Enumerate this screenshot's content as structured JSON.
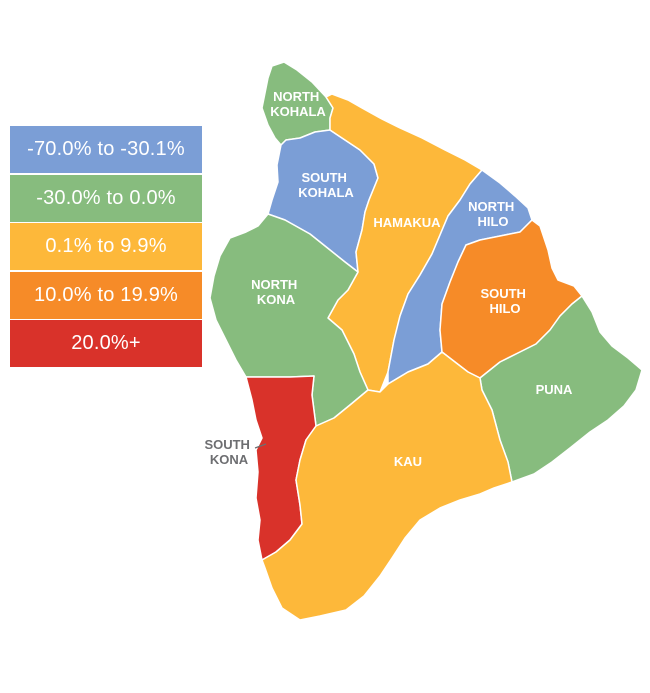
{
  "colors": {
    "range_1": "#7b9ed6",
    "range_2": "#87bc7e",
    "range_3": "#fdb83a",
    "range_4": "#f68b28",
    "range_5": "#d9322a",
    "outside_label": "#6d6e71"
  },
  "legend": {
    "items": [
      {
        "label": "-70.0% to -30.1%",
        "color": "#7b9ed6"
      },
      {
        "label": "-30.0% to 0.0%",
        "color": "#87bc7e"
      },
      {
        "label": "0.1% to 9.9%",
        "color": "#fdb83a"
      },
      {
        "label": "10.0% to 19.9%",
        "color": "#f68b28"
      },
      {
        "label": "20.0%+",
        "color": "#d9322a"
      }
    ]
  },
  "districts": {
    "north_kohala": {
      "line1": "NORTH",
      "line2": "KOHALA",
      "range": "-30.0% to 0.0%"
    },
    "south_kohala": {
      "line1": "SOUTH",
      "line2": "KOHALA",
      "range": "-70.0% to -30.1%"
    },
    "hamakua": {
      "line1": "HAMAKUA",
      "range": "0.1% to 9.9%"
    },
    "north_hilo": {
      "line1": "NORTH",
      "line2": "HILO",
      "range": "-70.0% to -30.1%"
    },
    "north_kona": {
      "line1": "NORTH",
      "line2": "KONA",
      "range": "-30.0% to 0.0%"
    },
    "south_hilo": {
      "line1": "SOUTH",
      "line2": "HILO",
      "range": "10.0% to 19.9%"
    },
    "puna": {
      "line1": "PUNA",
      "range": "-30.0% to 0.0%"
    },
    "south_kona": {
      "line1": "SOUTH",
      "line2": "KONA",
      "range": "20.0%+"
    },
    "kau": {
      "line1": "KAU",
      "range": "0.1% to 9.9%"
    }
  }
}
